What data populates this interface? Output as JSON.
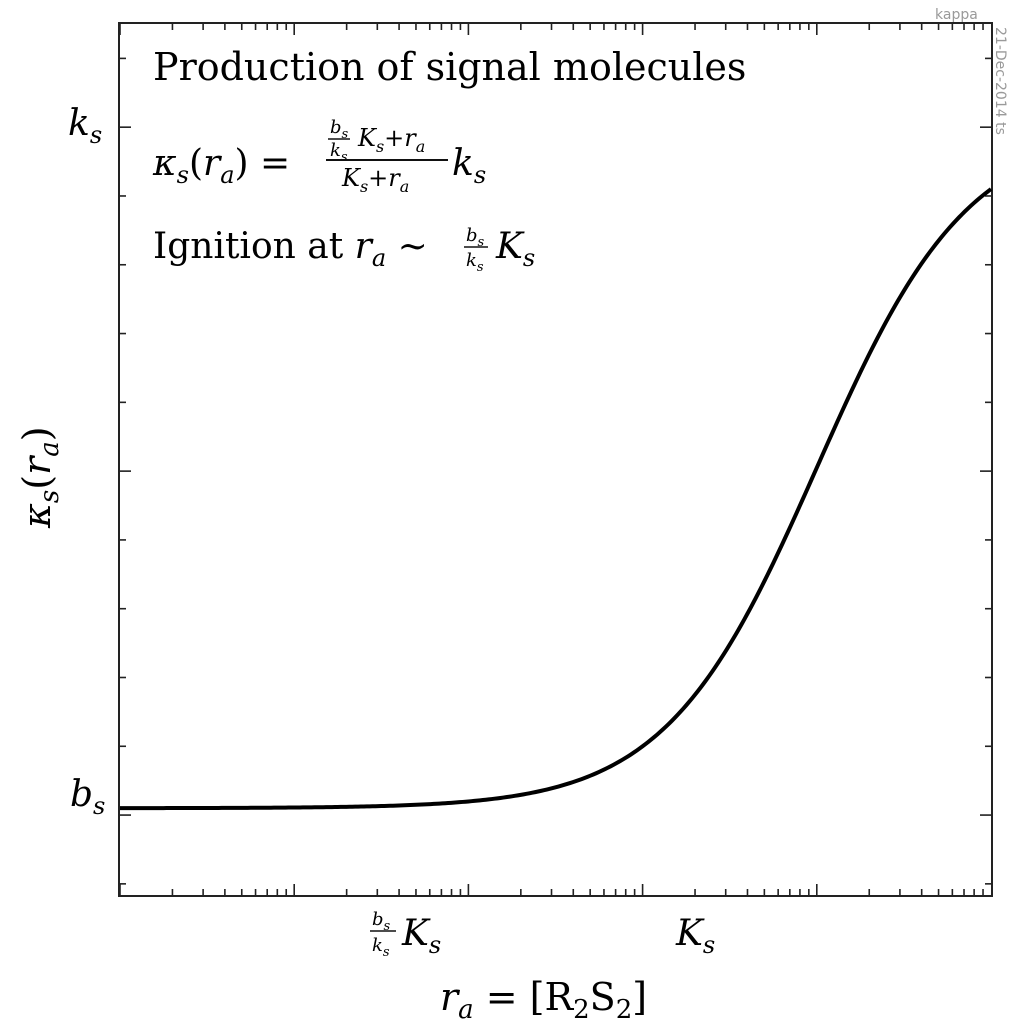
{
  "chart_data": {
    "type": "line",
    "xscale": "log",
    "title": "Production of signal molecules",
    "xlabel": "r_a = [R2S2]",
    "ylabel": "κ_s(r_a)",
    "annotations": {
      "formula": "κ_s(r_a) = ((b_s/k_s) K_s + r_a) / (K_s + r_a) · k_s",
      "ignition": "Ignition at r_a ~ (b_s/k_s) K_s"
    },
    "x_ticks": [
      "(b_s/k_s) K_s",
      "K_s"
    ],
    "y_ticks": [
      "b_s",
      "k_s"
    ],
    "params": {
      "bs_over_ks": 0.01,
      "Ks": 1,
      "ks": 1
    },
    "xlim": [
      0.0001,
      10
    ],
    "ylim": [
      -0.1162,
      1.15
    ],
    "grid": false,
    "series": [
      {
        "color": "#000000"
      }
    ]
  },
  "stamps": {
    "top": "kappa",
    "side": "21-Dec-2014 ts"
  }
}
